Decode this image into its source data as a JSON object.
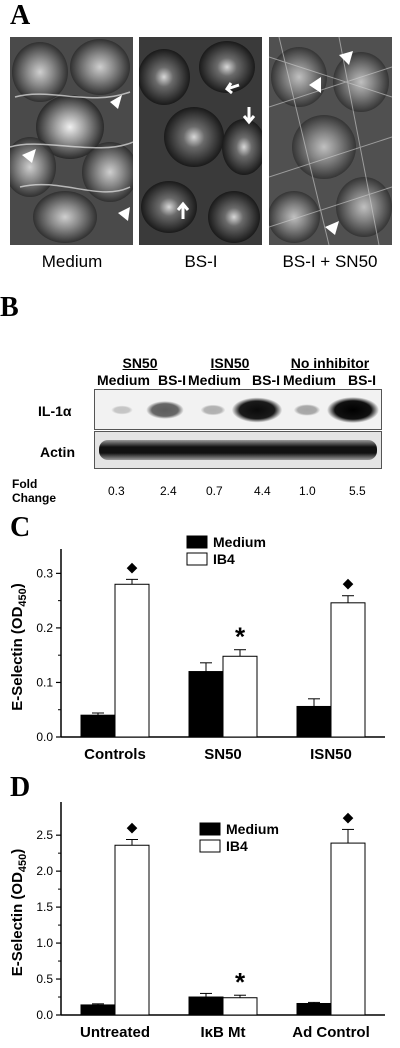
{
  "panel_a": {
    "letter": "A",
    "captions": [
      "Medium",
      "BS-I",
      "BS-I + SN50"
    ]
  },
  "panel_b": {
    "letter": "B",
    "groups": [
      "SN50",
      "ISN50",
      "No inhibitor"
    ],
    "columns": [
      "Medium",
      "BS-I",
      "Medium",
      "BS-I",
      "Medium",
      "BS-I"
    ],
    "rows": [
      "IL-1α",
      "Actin"
    ],
    "fold_label_line1": "Fold",
    "fold_label_line2": "Change",
    "fold_values": [
      "0.3",
      "2.4",
      "0.7",
      "4.4",
      "1.0",
      "5.5"
    ],
    "il1a_band_intensity": [
      0.05,
      0.55,
      0.15,
      0.95,
      0.2,
      1.0
    ]
  },
  "chart_data": [
    {
      "panel": "C",
      "type": "bar",
      "ylabel": "E-Selectin (OD450)",
      "categories": [
        "Controls",
        "SN50",
        "ISN50"
      ],
      "ylim": [
        0,
        0.33
      ],
      "yticks": [
        "0.0",
        "0.1",
        "0.2",
        "0.3"
      ],
      "ytick_values": [
        0.0,
        0.1,
        0.2,
        0.3
      ],
      "series": [
        {
          "name": "Medium",
          "color": "#000000",
          "values": [
            0.04,
            0.12,
            0.056
          ],
          "errors": [
            0.004,
            0.016,
            0.014
          ]
        },
        {
          "name": "IB4",
          "color": "#ffffff",
          "values": [
            0.28,
            0.148,
            0.246
          ],
          "errors": [
            0.009,
            0.012,
            0.013
          ]
        }
      ],
      "annotations": [
        {
          "category": 0,
          "series": 1,
          "symbol": "◆"
        },
        {
          "category": 1,
          "series": 1,
          "symbol": "*"
        },
        {
          "category": 2,
          "series": 1,
          "symbol": "◆"
        }
      ]
    },
    {
      "panel": "D",
      "type": "bar",
      "ylabel": "E-Selectin (OD450)",
      "categories": [
        "Untreated",
        "IκB Mt",
        "Ad Control"
      ],
      "ylim": [
        0,
        2.85
      ],
      "yticks": [
        "0.0",
        "0.5",
        "1.0",
        "1.5",
        "2.0",
        "2.5"
      ],
      "ytick_values": [
        0.0,
        0.5,
        1.0,
        1.5,
        2.0,
        2.5
      ],
      "series": [
        {
          "name": "Medium",
          "color": "#000000",
          "values": [
            0.14,
            0.25,
            0.16
          ],
          "errors": [
            0.015,
            0.05,
            0.015
          ]
        },
        {
          "name": "IB4",
          "color": "#ffffff",
          "values": [
            2.36,
            0.24,
            2.39
          ],
          "errors": [
            0.08,
            0.035,
            0.19
          ]
        }
      ],
      "annotations": [
        {
          "category": 0,
          "series": 1,
          "symbol": "◆"
        },
        {
          "category": 1,
          "series": 1,
          "symbol": "*"
        },
        {
          "category": 2,
          "series": 1,
          "symbol": "◆"
        }
      ]
    }
  ]
}
